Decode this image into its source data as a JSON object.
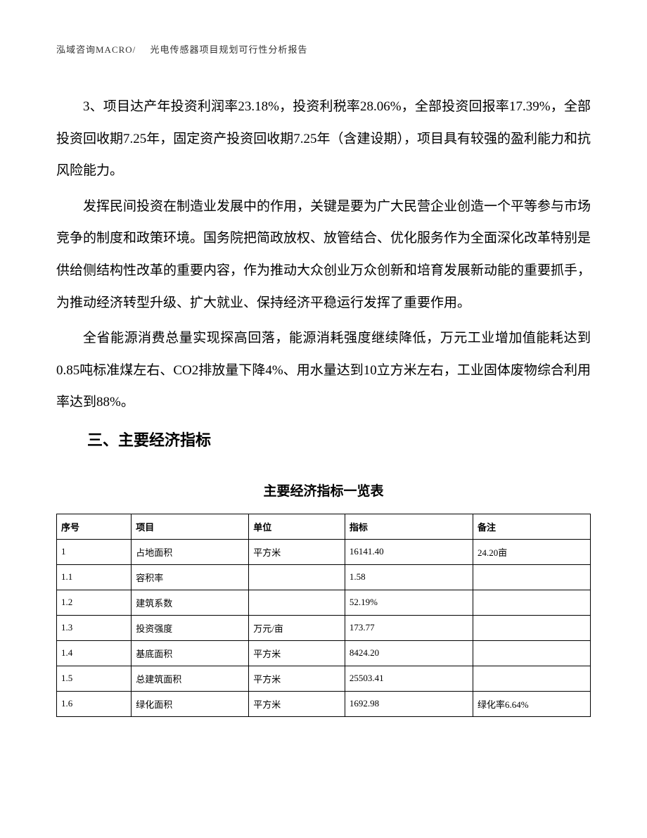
{
  "header": {
    "company": "泓域咨询MACRO/",
    "title": "光电传感器项目规划可行性分析报告"
  },
  "paragraphs": {
    "p1": "3、项目达产年投资利润率23.18%，投资利税率28.06%，全部投资回报率17.39%，全部投资回收期7.25年，固定资产投资回收期7.25年（含建设期），项目具有较强的盈利能力和抗风险能力。",
    "p2": "发挥民间投资在制造业发展中的作用，关键是要为广大民营企业创造一个平等参与市场竞争的制度和政策环境。国务院把简政放权、放管结合、优化服务作为全面深化改革特别是供给侧结构性改革的重要内容，作为推动大众创业万众创新和培育发展新动能的重要抓手，为推动经济转型升级、扩大就业、保持经济平稳运行发挥了重要作用。",
    "p3": "全省能源消费总量实现探高回落，能源消耗强度继续降低，万元工业增加值能耗达到0.85吨标准煤左右、CO2排放量下降4%、用水量达到10立方米左右，工业固体废物综合利用率达到88%。"
  },
  "section_heading": "三、主要经济指标",
  "table": {
    "title": "主要经济指标一览表",
    "columns": [
      "序号",
      "项目",
      "单位",
      "指标",
      "备注"
    ],
    "rows": [
      [
        "1",
        "占地面积",
        "平方米",
        "16141.40",
        "24.20亩"
      ],
      [
        "1.1",
        "容积率",
        "",
        "1.58",
        ""
      ],
      [
        "1.2",
        "建筑系数",
        "",
        "52.19%",
        ""
      ],
      [
        "1.3",
        "投资强度",
        "万元/亩",
        "173.77",
        ""
      ],
      [
        "1.4",
        "基底面积",
        "平方米",
        "8424.20",
        ""
      ],
      [
        "1.5",
        "总建筑面积",
        "平方米",
        "25503.41",
        ""
      ],
      [
        "1.6",
        "绿化面积",
        "平方米",
        "1692.98",
        "绿化率6.64%"
      ]
    ]
  }
}
